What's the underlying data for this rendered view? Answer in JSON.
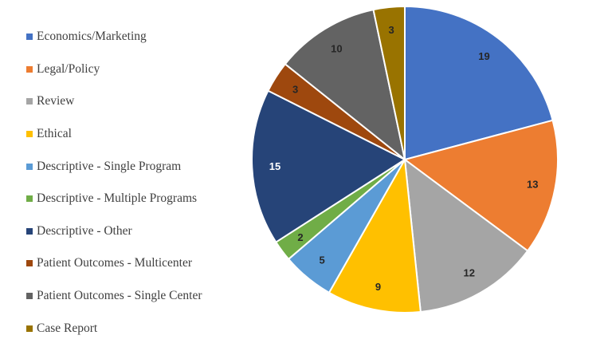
{
  "chart_data": {
    "type": "pie",
    "legend_position": "left",
    "slices": [
      {
        "label": "Economics/Marketing",
        "value": 19,
        "color": "#4472C4",
        "label_color": "#262626"
      },
      {
        "label": "Legal/Policy",
        "value": 13,
        "color": "#ED7D31",
        "label_color": "#262626"
      },
      {
        "label": "Review",
        "value": 12,
        "color": "#A5A5A5",
        "label_color": "#262626"
      },
      {
        "label": "Ethical",
        "value": 9,
        "color": "#FFC000",
        "label_color": "#262626"
      },
      {
        "label": "Descriptive - Single Program",
        "value": 5,
        "color": "#5B9BD5",
        "label_color": "#262626"
      },
      {
        "label": "Descriptive - Multiple Programs",
        "value": 2,
        "color": "#70AD47",
        "label_color": "#262626"
      },
      {
        "label": "Descriptive - Other",
        "value": 15,
        "color": "#264478",
        "label_color": "#ffffff"
      },
      {
        "label": "Patient Outcomes - Multicenter",
        "value": 3,
        "color": "#9E480E",
        "label_color": "#262626"
      },
      {
        "label": "Patient Outcomes - Single Center",
        "value": 10,
        "color": "#636363",
        "label_color": "#262626"
      },
      {
        "label": "Case Report",
        "value": 3,
        "color": "#997300",
        "label_color": "#262626"
      }
    ]
  }
}
